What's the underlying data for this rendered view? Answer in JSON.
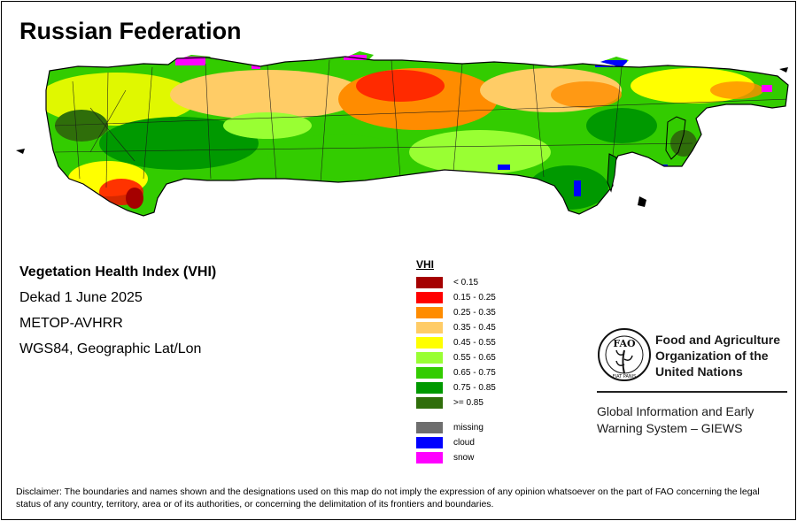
{
  "title": "Russian Federation",
  "info": {
    "index_name": "Vegetation Health Index (VHI)",
    "period": "Dekad 1 June 2025",
    "sensor": "METOP-AVHRR",
    "projection": "WGS84, Geographic Lat/Lon"
  },
  "legend": {
    "title": "VHI",
    "classes": [
      {
        "label": "< 0.15",
        "color": "#a50000"
      },
      {
        "label": "0.15 - 0.25",
        "color": "#ff0000"
      },
      {
        "label": "0.25 - 0.35",
        "color": "#ff8c00"
      },
      {
        "label": "0.35 - 0.45",
        "color": "#ffcc66"
      },
      {
        "label": "0.45 - 0.55",
        "color": "#ffff00"
      },
      {
        "label": "0.55 - 0.65",
        "color": "#99ff33"
      },
      {
        "label": "0.65 - 0.75",
        "color": "#33cc00"
      },
      {
        "label": "0.75 - 0.85",
        "color": "#009900"
      },
      {
        "label": ">= 0.85",
        "color": "#2f6e0a"
      }
    ],
    "other": [
      {
        "label": "missing",
        "color": "#6e6e6e"
      },
      {
        "label": "cloud",
        "color": "#0000ff"
      },
      {
        "label": "snow",
        "color": "#ff00ff"
      }
    ]
  },
  "logo": {
    "letters": "FAO",
    "motto": "FIAT PANIS",
    "org_line1": "Food and Agriculture",
    "org_line2": "Organization of the",
    "org_line3": "United Nations",
    "giews_line1": "Global Information and Early",
    "giews_line2": "Warning System – GIEWS"
  },
  "disclaimer": "Disclaimer: The boundaries and names shown and the designations used on this map do not imply the expression of any opinion whatsoever on the part of FAO concerning the legal status of any country, territory, area or of its authorities, or concerning the delimitation of its frontiers and boundaries."
}
